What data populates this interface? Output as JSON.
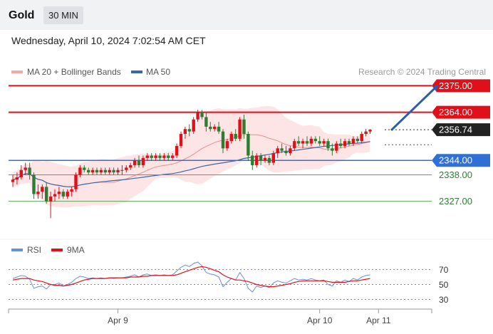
{
  "header": {
    "symbol": "Gold",
    "timeframe": "30 MIN",
    "datetime": "Wednesday, April 10, 2024 7:02:54 AM CET"
  },
  "legend": {
    "bollinger": "MA 20 + Bollinger Bands",
    "ma50": "MA 50",
    "credit": "Research © 2024 Trading Central",
    "rsi": "RSI",
    "rsi_ma": "9MA"
  },
  "colors": {
    "bull": "#e0101a",
    "bear": "#2e7d32",
    "band_fill": "#fde0e0",
    "ma20": "#f08a8a",
    "ma50": "#3b66a8",
    "resistance": "#e0101a",
    "support_blue": "#2f6fd6",
    "support_green": "#5aa35a",
    "arrow": "#2a5db0",
    "rsi": "#6b8fd8",
    "rsi_ma": "#e0101a"
  },
  "chart_data": {
    "type": "candlestick",
    "ylim": [
      2313,
      2384
    ],
    "levels": [
      {
        "label": "2375.00",
        "value": 2375.0,
        "style": "resistance"
      },
      {
        "label": "2364.00",
        "value": 2364.0,
        "style": "resistance"
      },
      {
        "label": "2356.74",
        "value": 2356.74,
        "style": "current"
      },
      {
        "label": "2344.00",
        "value": 2344.0,
        "style": "support-blue"
      },
      {
        "label": "2338.00",
        "value": 2338.0,
        "style": "support-green"
      },
      {
        "label": "2327.00",
        "value": 2327.0,
        "style": "support-green"
      }
    ],
    "x_ticks": [
      {
        "label": "Apr 9",
        "index": 25
      },
      {
        "label": "Apr 10",
        "index": 73
      },
      {
        "label": "Apr 11",
        "index": 87
      }
    ],
    "forecast_arrow": {
      "from": [
        90,
        2356.5
      ],
      "to": [
        101,
        2375
      ]
    },
    "candles": [
      [
        2335,
        2338,
        2333,
        2336
      ],
      [
        2336,
        2339,
        2334,
        2337
      ],
      [
        2337,
        2342,
        2336,
        2340
      ],
      [
        2340,
        2343,
        2338,
        2341
      ],
      [
        2341,
        2343,
        2336,
        2338
      ],
      [
        2338,
        2339,
        2328,
        2330
      ],
      [
        2330,
        2334,
        2328,
        2331
      ],
      [
        2331,
        2334,
        2328,
        2333
      ],
      [
        2333,
        2335,
        2326,
        2327
      ],
      [
        2327,
        2331,
        2320,
        2329
      ],
      [
        2329,
        2332,
        2327,
        2330
      ],
      [
        2330,
        2333,
        2328,
        2331
      ],
      [
        2331,
        2332,
        2328,
        2329
      ],
      [
        2329,
        2332,
        2328,
        2331
      ],
      [
        2331,
        2333,
        2329,
        2332
      ],
      [
        2332,
        2339,
        2331,
        2338
      ],
      [
        2338,
        2342,
        2337,
        2341
      ],
      [
        2341,
        2342,
        2339,
        2340
      ],
      [
        2340,
        2341,
        2338,
        2339
      ],
      [
        2339,
        2341,
        2338,
        2340
      ],
      [
        2340,
        2341,
        2338,
        2339
      ],
      [
        2339,
        2341,
        2338,
        2340
      ],
      [
        2340,
        2341,
        2338,
        2339
      ],
      [
        2339,
        2341,
        2338,
        2340
      ],
      [
        2340,
        2341,
        2338,
        2339
      ],
      [
        2339,
        2341,
        2338,
        2340
      ],
      [
        2340,
        2342,
        2338,
        2340
      ],
      [
        2340,
        2342,
        2339,
        2341
      ],
      [
        2341,
        2343,
        2340,
        2342
      ],
      [
        2342,
        2345,
        2341,
        2344
      ],
      [
        2344,
        2346,
        2341,
        2342
      ],
      [
        2342,
        2346,
        2341,
        2345
      ],
      [
        2345,
        2347,
        2344,
        2346
      ],
      [
        2346,
        2347,
        2344,
        2345
      ],
      [
        2345,
        2347,
        2344,
        2346
      ],
      [
        2346,
        2347,
        2344,
        2345
      ],
      [
        2345,
        2347,
        2344,
        2346
      ],
      [
        2346,
        2347,
        2344,
        2345
      ],
      [
        2345,
        2347,
        2344,
        2346
      ],
      [
        2346,
        2351,
        2345,
        2350
      ],
      [
        2350,
        2356,
        2349,
        2355
      ],
      [
        2355,
        2358,
        2353,
        2357
      ],
      [
        2357,
        2359,
        2354,
        2356
      ],
      [
        2356,
        2362,
        2355,
        2361
      ],
      [
        2361,
        2365,
        2360,
        2364
      ],
      [
        2364,
        2365,
        2361,
        2362
      ],
      [
        2362,
        2364,
        2356,
        2358
      ],
      [
        2358,
        2360,
        2356,
        2357
      ],
      [
        2357,
        2359,
        2356,
        2358
      ],
      [
        2358,
        2360,
        2355,
        2356
      ],
      [
        2356,
        2357,
        2347,
        2349
      ],
      [
        2349,
        2353,
        2348,
        2352
      ],
      [
        2352,
        2356,
        2351,
        2355
      ],
      [
        2355,
        2357,
        2352,
        2353
      ],
      [
        2353,
        2362,
        2352,
        2361
      ],
      [
        2361,
        2363,
        2353,
        2355
      ],
      [
        2355,
        2356,
        2344,
        2346
      ],
      [
        2346,
        2348,
        2340,
        2342
      ],
      [
        2342,
        2347,
        2341,
        2346
      ],
      [
        2346,
        2347,
        2342,
        2344
      ],
      [
        2344,
        2346,
        2343,
        2345
      ],
      [
        2345,
        2346,
        2342,
        2343
      ],
      [
        2343,
        2348,
        2342,
        2347
      ],
      [
        2347,
        2350,
        2345,
        2349
      ],
      [
        2349,
        2351,
        2347,
        2348
      ],
      [
        2348,
        2350,
        2346,
        2347
      ],
      [
        2347,
        2350,
        2346,
        2349
      ],
      [
        2349,
        2353,
        2348,
        2352
      ],
      [
        2352,
        2354,
        2350,
        2351
      ],
      [
        2351,
        2353,
        2349,
        2352
      ],
      [
        2352,
        2354,
        2350,
        2351
      ],
      [
        2351,
        2354,
        2350,
        2353
      ],
      [
        2353,
        2354,
        2351,
        2352
      ],
      [
        2352,
        2354,
        2350,
        2351
      ],
      [
        2351,
        2353,
        2350,
        2352
      ],
      [
        2352,
        2353,
        2348,
        2349
      ],
      [
        2349,
        2351,
        2346,
        2348
      ],
      [
        2348,
        2352,
        2347,
        2351
      ],
      [
        2351,
        2353,
        2349,
        2350
      ],
      [
        2350,
        2353,
        2349,
        2352
      ],
      [
        2352,
        2353,
        2350,
        2351
      ],
      [
        2351,
        2354,
        2350,
        2353
      ],
      [
        2353,
        2354,
        2351,
        2352
      ],
      [
        2352,
        2356,
        2351,
        2355
      ],
      [
        2355,
        2357,
        2354,
        2356
      ],
      [
        2356,
        2357,
        2355,
        2356.74
      ]
    ],
    "rsi": {
      "ylim": [
        20,
        80
      ],
      "ticks": [
        70,
        50,
        30
      ],
      "values": [
        58,
        60,
        62,
        61,
        57,
        45,
        47,
        48,
        44,
        50,
        50,
        52,
        48,
        50,
        53,
        58,
        61,
        60,
        58,
        59,
        58,
        59,
        58,
        59,
        58,
        59,
        59,
        60,
        61,
        63,
        60,
        63,
        64,
        62,
        63,
        62,
        63,
        62,
        63,
        68,
        73,
        76,
        74,
        78,
        80,
        75,
        66,
        64,
        63,
        60,
        47,
        53,
        58,
        56,
        66,
        58,
        45,
        40,
        48,
        46,
        48,
        46,
        52,
        55,
        53,
        52,
        55,
        58,
        56,
        57,
        56,
        58,
        56,
        55,
        56,
        50,
        48,
        55,
        53,
        56,
        54,
        58,
        56,
        60,
        62,
        63
      ],
      "ma": [
        56,
        57,
        58,
        58,
        58,
        56,
        55,
        54,
        52,
        50,
        49,
        49,
        48,
        49,
        50,
        52,
        54,
        56,
        57,
        58,
        58,
        58,
        58,
        59,
        59,
        59,
        59,
        59,
        60,
        60,
        60,
        61,
        61,
        62,
        62,
        62,
        62,
        62,
        62,
        63,
        65,
        67,
        69,
        71,
        73,
        74,
        73,
        71,
        69,
        67,
        63,
        60,
        58,
        56,
        56,
        55,
        54,
        52,
        50,
        49,
        48,
        47,
        47,
        48,
        49,
        50,
        51,
        53,
        54,
        55,
        55,
        55,
        55,
        55,
        55,
        54,
        53,
        53,
        53,
        53,
        54,
        55,
        55,
        56,
        57,
        58
      ]
    }
  }
}
